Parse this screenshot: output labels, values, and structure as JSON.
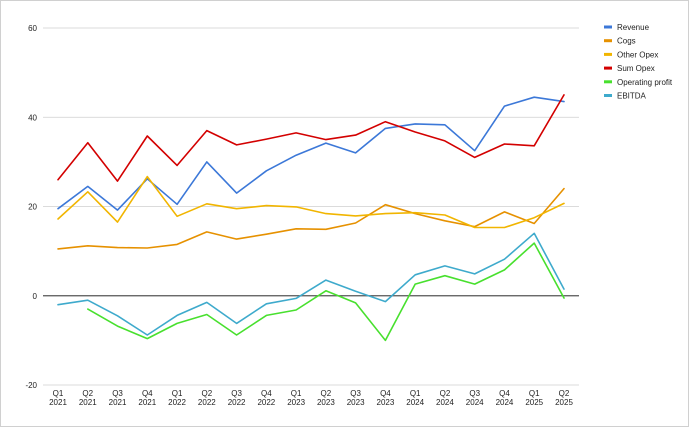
{
  "chart_data": {
    "type": "line",
    "categories": [
      [
        "Q1",
        "2021"
      ],
      [
        "Q2",
        "2021"
      ],
      [
        "Q3",
        "2021"
      ],
      [
        "Q4",
        "2021"
      ],
      [
        "Q1",
        "2022"
      ],
      [
        "Q2",
        "2022"
      ],
      [
        "Q3",
        "2022"
      ],
      [
        "Q4",
        "2022"
      ],
      [
        "Q1",
        "2023"
      ],
      [
        "Q2",
        "2023"
      ],
      [
        "Q3",
        "2023"
      ],
      [
        "Q4",
        "2023"
      ],
      [
        "Q1",
        "2024"
      ],
      [
        "Q2",
        "2024"
      ],
      [
        "Q3",
        "2024"
      ],
      [
        "Q4",
        "2024"
      ],
      [
        "Q1",
        "2025"
      ],
      [
        "Q2",
        "2025"
      ]
    ],
    "ylim": [
      -20,
      60
    ],
    "yticks": [
      -20,
      0,
      20,
      40,
      60
    ],
    "grid": true,
    "legend_position": "right",
    "series": [
      {
        "name": "Revenue",
        "color": "#3c78d8",
        "values": [
          19.5,
          24.5,
          19.2,
          26.2,
          20.5,
          30.0,
          23.0,
          28.0,
          31.5,
          34.2,
          32.0,
          37.5,
          38.5,
          38.3,
          32.5,
          42.5,
          44.5,
          43.5
        ]
      },
      {
        "name": "Cogs",
        "color": "#e69100",
        "values": [
          10.5,
          11.2,
          10.8,
          10.7,
          11.5,
          14.3,
          12.7,
          13.8,
          15.0,
          14.9,
          16.3,
          20.4,
          18.4,
          16.8,
          15.5,
          18.8,
          16.2,
          24.0
        ]
      },
      {
        "name": "Other Opex",
        "color": "#f1b500",
        "values": [
          17.2,
          23.3,
          16.5,
          26.7,
          17.8,
          20.6,
          19.5,
          20.2,
          19.9,
          18.4,
          17.9,
          18.4,
          18.6,
          18.1,
          15.3,
          15.3,
          17.5,
          20.7
        ]
      },
      {
        "name": "Sum Opex",
        "color": "#d30000",
        "values": [
          26.0,
          34.3,
          25.7,
          35.8,
          29.2,
          37.0,
          33.8,
          35.1,
          36.5,
          35.0,
          36.0,
          39.0,
          36.7,
          34.7,
          31.0,
          34.0,
          33.6,
          45.0
        ]
      },
      {
        "name": "Operating profit",
        "color": "#48e02e",
        "values": [
          null,
          -3.0,
          -6.8,
          -9.6,
          -6.2,
          -4.2,
          -8.8,
          -4.4,
          -3.2,
          1.1,
          -1.6,
          -10.0,
          2.6,
          4.5,
          2.6,
          5.8,
          11.8,
          -0.5
        ]
      },
      {
        "name": "EBITDA",
        "color": "#3eaacc",
        "values": [
          -2.0,
          -1.0,
          -4.5,
          -8.8,
          -4.4,
          -1.5,
          -6.2,
          -1.8,
          -0.6,
          3.5,
          1.0,
          -1.3,
          4.7,
          6.7,
          4.9,
          8.2,
          14.0,
          1.5
        ]
      }
    ]
  }
}
